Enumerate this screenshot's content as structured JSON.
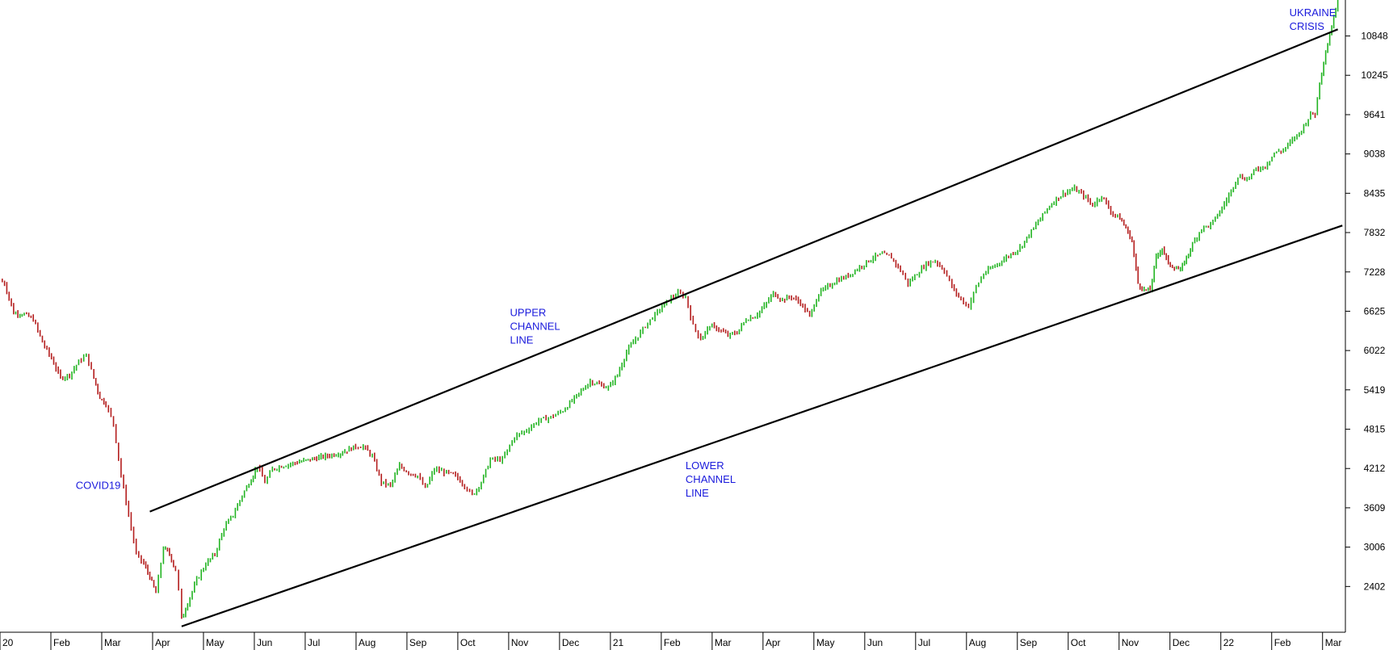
{
  "chart_data": {
    "type": "candlestick",
    "y_axis": {
      "side": "right",
      "ticks": [
        2402,
        3006,
        3609,
        4212,
        4815,
        5419,
        6022,
        6625,
        7228,
        7832,
        8435,
        9038,
        9641,
        10245,
        10848
      ],
      "range": [
        1700,
        11400
      ]
    },
    "x_axis": {
      "labels": [
        "20",
        "Feb",
        "Mar",
        "Apr",
        "May",
        "Jun",
        "Jul",
        "Aug",
        "Sep",
        "Oct",
        "Nov",
        "Dec",
        "21",
        "Feb",
        "Mar",
        "Apr",
        "May",
        "Jun",
        "Jul",
        "Aug",
        "Sep",
        "Oct",
        "Nov",
        "Dec",
        "22",
        "Feb",
        "Mar"
      ],
      "period_start": "2020-01",
      "period_end": "2022-03"
    },
    "colors": {
      "up": "#22b422",
      "down": "#b41e1e",
      "trendline": "#000000",
      "annotation": "#1a1adc",
      "axis": "#000000"
    },
    "price_path": [
      [
        0,
        7100
      ],
      [
        3,
        7050
      ],
      [
        9,
        6600
      ],
      [
        16,
        6580
      ],
      [
        22,
        6500
      ],
      [
        28,
        6150
      ],
      [
        34,
        5900
      ],
      [
        40,
        5600
      ],
      [
        46,
        5650
      ],
      [
        52,
        5850
      ],
      [
        57,
        5950
      ],
      [
        62,
        5600
      ],
      [
        66,
        5300
      ],
      [
        70,
        5200
      ],
      [
        75,
        4900
      ],
      [
        80,
        4100
      ],
      [
        85,
        3500
      ],
      [
        90,
        2900
      ],
      [
        95,
        2750
      ],
      [
        99,
        2550
      ],
      [
        103,
        2300
      ],
      [
        108,
        3000
      ],
      [
        112,
        2900
      ],
      [
        116,
        2650
      ],
      [
        118,
        2350
      ],
      [
        120,
        1900
      ],
      [
        124,
        2150
      ],
      [
        130,
        2500
      ],
      [
        136,
        2750
      ],
      [
        142,
        2900
      ],
      [
        148,
        3300
      ],
      [
        154,
        3500
      ],
      [
        160,
        3800
      ],
      [
        166,
        4050
      ],
      [
        170,
        4250
      ],
      [
        175,
        4000
      ],
      [
        180,
        4200
      ],
      [
        186,
        4250
      ],
      [
        195,
        4300
      ],
      [
        205,
        4350
      ],
      [
        215,
        4400
      ],
      [
        225,
        4450
      ],
      [
        235,
        4550
      ],
      [
        240,
        4550
      ],
      [
        246,
        4400
      ],
      [
        252,
        4000
      ],
      [
        258,
        3950
      ],
      [
        264,
        4250
      ],
      [
        270,
        4150
      ],
      [
        276,
        4100
      ],
      [
        281,
        3900
      ],
      [
        287,
        4200
      ],
      [
        295,
        4150
      ],
      [
        301,
        4100
      ],
      [
        307,
        3950
      ],
      [
        312,
        3800
      ],
      [
        318,
        4000
      ],
      [
        324,
        4350
      ],
      [
        332,
        4350
      ],
      [
        340,
        4700
      ],
      [
        348,
        4800
      ],
      [
        356,
        4950
      ],
      [
        364,
        5000
      ],
      [
        372,
        5100
      ],
      [
        378,
        5250
      ],
      [
        384,
        5400
      ],
      [
        390,
        5550
      ],
      [
        396,
        5500
      ],
      [
        402,
        5450
      ],
      [
        408,
        5650
      ],
      [
        414,
        6000
      ],
      [
        420,
        6200
      ],
      [
        428,
        6450
      ],
      [
        436,
        6650
      ],
      [
        442,
        6800
      ],
      [
        448,
        6900
      ],
      [
        453,
        6850
      ],
      [
        458,
        6400
      ],
      [
        463,
        6200
      ],
      [
        469,
        6400
      ],
      [
        475,
        6350
      ],
      [
        481,
        6250
      ],
      [
        487,
        6300
      ],
      [
        493,
        6500
      ],
      [
        499,
        6550
      ],
      [
        505,
        6700
      ],
      [
        511,
        6900
      ],
      [
        517,
        6800
      ],
      [
        523,
        6850
      ],
      [
        529,
        6750
      ],
      [
        535,
        6550
      ],
      [
        541,
        6900
      ],
      [
        547,
        7000
      ],
      [
        553,
        7100
      ],
      [
        559,
        7150
      ],
      [
        565,
        7250
      ],
      [
        571,
        7350
      ],
      [
        577,
        7450
      ],
      [
        583,
        7500
      ],
      [
        589,
        7450
      ],
      [
        595,
        7250
      ],
      [
        600,
        7050
      ],
      [
        606,
        7200
      ],
      [
        612,
        7350
      ],
      [
        618,
        7400
      ],
      [
        624,
        7250
      ],
      [
        629,
        7000
      ],
      [
        635,
        6800
      ],
      [
        640,
        6700
      ],
      [
        645,
        7000
      ],
      [
        650,
        7200
      ],
      [
        656,
        7300
      ],
      [
        662,
        7400
      ],
      [
        668,
        7500
      ],
      [
        674,
        7600
      ],
      [
        680,
        7800
      ],
      [
        686,
        8000
      ],
      [
        692,
        8200
      ],
      [
        698,
        8350
      ],
      [
        704,
        8450
      ],
      [
        710,
        8500
      ],
      [
        716,
        8400
      ],
      [
        722,
        8250
      ],
      [
        728,
        8400
      ],
      [
        734,
        8150
      ],
      [
        740,
        8050
      ],
      [
        744,
        7900
      ],
      [
        748,
        7700
      ],
      [
        752,
        7050
      ],
      [
        756,
        6950
      ],
      [
        760,
        6950
      ],
      [
        764,
        7450
      ],
      [
        768,
        7600
      ],
      [
        772,
        7350
      ],
      [
        776,
        7300
      ],
      [
        780,
        7250
      ],
      [
        784,
        7450
      ],
      [
        788,
        7650
      ],
      [
        794,
        7900
      ],
      [
        800,
        7950
      ],
      [
        806,
        8150
      ],
      [
        812,
        8400
      ],
      [
        818,
        8700
      ],
      [
        824,
        8650
      ],
      [
        830,
        8800
      ],
      [
        836,
        8850
      ],
      [
        842,
        9050
      ],
      [
        848,
        9100
      ],
      [
        854,
        9250
      ],
      [
        860,
        9400
      ],
      [
        866,
        9650
      ],
      [
        869,
        9650
      ],
      [
        872,
        10150
      ],
      [
        876,
        10600
      ],
      [
        880,
        11000
      ],
      [
        884,
        11400
      ]
    ],
    "trendlines": [
      {
        "label": "UPPER CHANNEL LINE",
        "points": [
          [
            99,
            3550
          ],
          [
            884,
            10950
          ]
        ]
      },
      {
        "label": "LOWER CHANNEL LINE",
        "points": [
          [
            120,
            1790
          ],
          [
            887,
            7940
          ]
        ]
      }
    ],
    "annotations": [
      {
        "lines": [
          "COVID19"
        ],
        "anchor": [
          50,
          3900
        ]
      },
      {
        "lines": [
          "UPPER",
          "CHANNEL",
          "LINE"
        ],
        "anchor": [
          337,
          6550
        ]
      },
      {
        "lines": [
          "LOWER",
          "CHANNEL",
          "LINE"
        ],
        "anchor": [
          453,
          4200
        ]
      },
      {
        "lines": [
          "UKRAINE",
          "CRISIS"
        ],
        "anchor": [
          852,
          11150
        ]
      }
    ]
  }
}
